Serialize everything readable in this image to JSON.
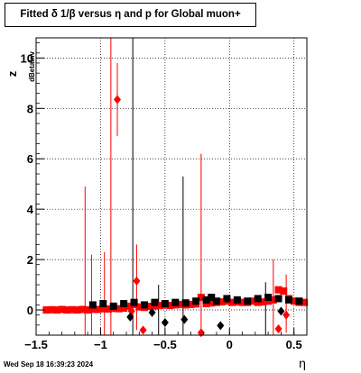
{
  "title": "Fitted δ 1/β versus η and p for Global muon+",
  "timestamp": "Wed Sep 18 16:39:23 2024",
  "chart_data": {
    "type": "scatter",
    "title": "Fitted δ 1/β versus η and p for Global muon+",
    "xlabel": "η",
    "ylabel": "z",
    "ylabel_subscript": "dBetaInv",
    "xlim": [
      -1.5,
      0.6
    ],
    "ylim": [
      -1.0,
      10.8
    ],
    "x_ticks": [
      -1.5,
      -1,
      -0.5,
      0,
      0.5
    ],
    "x_tick_labels": [
      "−1.5",
      "−1",
      "−0.5",
      "0",
      "0.5"
    ],
    "y_ticks": [
      0,
      2,
      4,
      6,
      8,
      10
    ],
    "y_tick_labels": [
      "0",
      "2",
      "4",
      "6",
      "8",
      "10"
    ],
    "grid": true,
    "series": [
      {
        "color": "#ff0000",
        "marker": "square",
        "points": [
          [
            -1.42,
            0.0
          ],
          [
            -1.38,
            0.01
          ],
          [
            -1.34,
            0.0
          ],
          [
            -1.3,
            0.02
          ],
          [
            -1.26,
            0.0
          ],
          [
            -1.22,
            0.01
          ],
          [
            -1.18,
            0.0
          ],
          [
            -1.14,
            0.02
          ],
          [
            -1.1,
            0.0
          ],
          [
            -1.06,
            0.03
          ],
          [
            -1.02,
            0.02
          ],
          [
            -0.98,
            0.05
          ],
          [
            -0.94,
            0.04
          ],
          [
            -0.9,
            0.06
          ],
          [
            -0.86,
            0.05
          ],
          [
            -0.82,
            0.07
          ],
          [
            -0.78,
            0.15
          ],
          [
            -0.74,
            0.22
          ],
          [
            -0.7,
            0.12
          ],
          [
            -0.66,
            0.1
          ],
          [
            -0.62,
            0.14
          ],
          [
            -0.58,
            0.16
          ],
          [
            -0.54,
            0.18
          ],
          [
            -0.5,
            0.2
          ],
          [
            -0.46,
            0.18
          ],
          [
            -0.42,
            0.2
          ],
          [
            -0.38,
            0.22
          ],
          [
            -0.34,
            0.2
          ],
          [
            -0.3,
            0.22
          ],
          [
            -0.26,
            0.24
          ],
          [
            -0.22,
            0.5
          ],
          [
            -0.18,
            0.25
          ],
          [
            -0.14,
            0.28
          ],
          [
            -0.1,
            0.3
          ],
          [
            -0.06,
            0.32
          ],
          [
            -0.02,
            0.35
          ],
          [
            0.02,
            0.3
          ],
          [
            0.06,
            0.32
          ],
          [
            0.1,
            0.3
          ],
          [
            0.14,
            0.3
          ],
          [
            0.18,
            0.35
          ],
          [
            0.22,
            0.3
          ],
          [
            0.26,
            0.32
          ],
          [
            0.3,
            0.35
          ],
          [
            0.34,
            0.4
          ],
          [
            0.38,
            0.8
          ],
          [
            0.42,
            0.75
          ],
          [
            0.46,
            0.45
          ],
          [
            0.5,
            0.35
          ],
          [
            0.54,
            0.3
          ],
          [
            0.58,
            0.3
          ]
        ]
      },
      {
        "color": "#ff0000",
        "marker": "diamond",
        "points": [
          [
            -0.87,
            8.35
          ],
          [
            -0.72,
            1.15
          ],
          [
            -0.67,
            -0.8
          ],
          [
            -0.76,
            -0.05
          ],
          [
            -0.22,
            -0.9
          ],
          [
            0.38,
            -0.75
          ],
          [
            0.44,
            -0.2
          ]
        ]
      },
      {
        "color": "#000000",
        "marker": "square",
        "points": [
          [
            -1.06,
            0.2
          ],
          [
            -0.98,
            0.25
          ],
          [
            -0.9,
            0.15
          ],
          [
            -0.82,
            0.25
          ],
          [
            -0.74,
            0.3
          ],
          [
            -0.66,
            0.2
          ],
          [
            -0.58,
            0.3
          ],
          [
            -0.5,
            0.25
          ],
          [
            -0.42,
            0.3
          ],
          [
            -0.34,
            0.28
          ],
          [
            -0.26,
            0.35
          ],
          [
            -0.18,
            0.4
          ],
          [
            -0.1,
            0.35
          ],
          [
            -0.02,
            0.45
          ],
          [
            -0.14,
            0.5
          ],
          [
            0.06,
            0.4
          ],
          [
            0.14,
            0.35
          ],
          [
            0.22,
            0.45
          ],
          [
            0.3,
            0.5
          ],
          [
            0.38,
            0.45
          ],
          [
            0.46,
            0.4
          ],
          [
            0.54,
            0.35
          ]
        ]
      },
      {
        "color": "#000000",
        "marker": "diamond",
        "points": [
          [
            -0.5,
            -0.5
          ],
          [
            -0.35,
            -0.38
          ],
          [
            -0.77,
            -0.28
          ],
          [
            -0.6,
            -0.1
          ],
          [
            -0.07,
            -0.62
          ],
          [
            0.4,
            -0.05
          ]
        ]
      }
    ],
    "error_bars": [
      {
        "color": "#ff0000",
        "x": -1.12,
        "low": -1.0,
        "high": 4.9
      },
      {
        "color": "#ff0000",
        "x": -1.07,
        "low": -1.0,
        "high": 2.2
      },
      {
        "color": "#ff0000",
        "x": -0.97,
        "low": -1.0,
        "high": 2.3
      },
      {
        "color": "#ff0000",
        "x": -0.92,
        "low": -1.0,
        "high": 10.8
      },
      {
        "color": "#ff0000",
        "x": -0.87,
        "low": 6.9,
        "high": 9.8
      },
      {
        "color": "#ff0000",
        "x": -0.72,
        "low": -0.8,
        "high": 2.6
      },
      {
        "color": "#ff0000",
        "x": -0.22,
        "low": -1.0,
        "high": 6.2
      },
      {
        "color": "#ff0000",
        "x": 0.34,
        "low": -1.0,
        "high": 2.0
      },
      {
        "color": "#ff0000",
        "x": 0.44,
        "low": -0.9,
        "high": 1.4
      },
      {
        "color": "#000000",
        "x": -0.75,
        "low": -1.0,
        "high": 10.8
      },
      {
        "color": "#000000",
        "x": -0.36,
        "low": -1.0,
        "high": 5.3
      },
      {
        "color": "#000000",
        "x": -0.55,
        "low": -1.0,
        "high": 1.0
      },
      {
        "color": "#000000",
        "x": 0.28,
        "low": -1.0,
        "high": 1.1
      }
    ]
  }
}
